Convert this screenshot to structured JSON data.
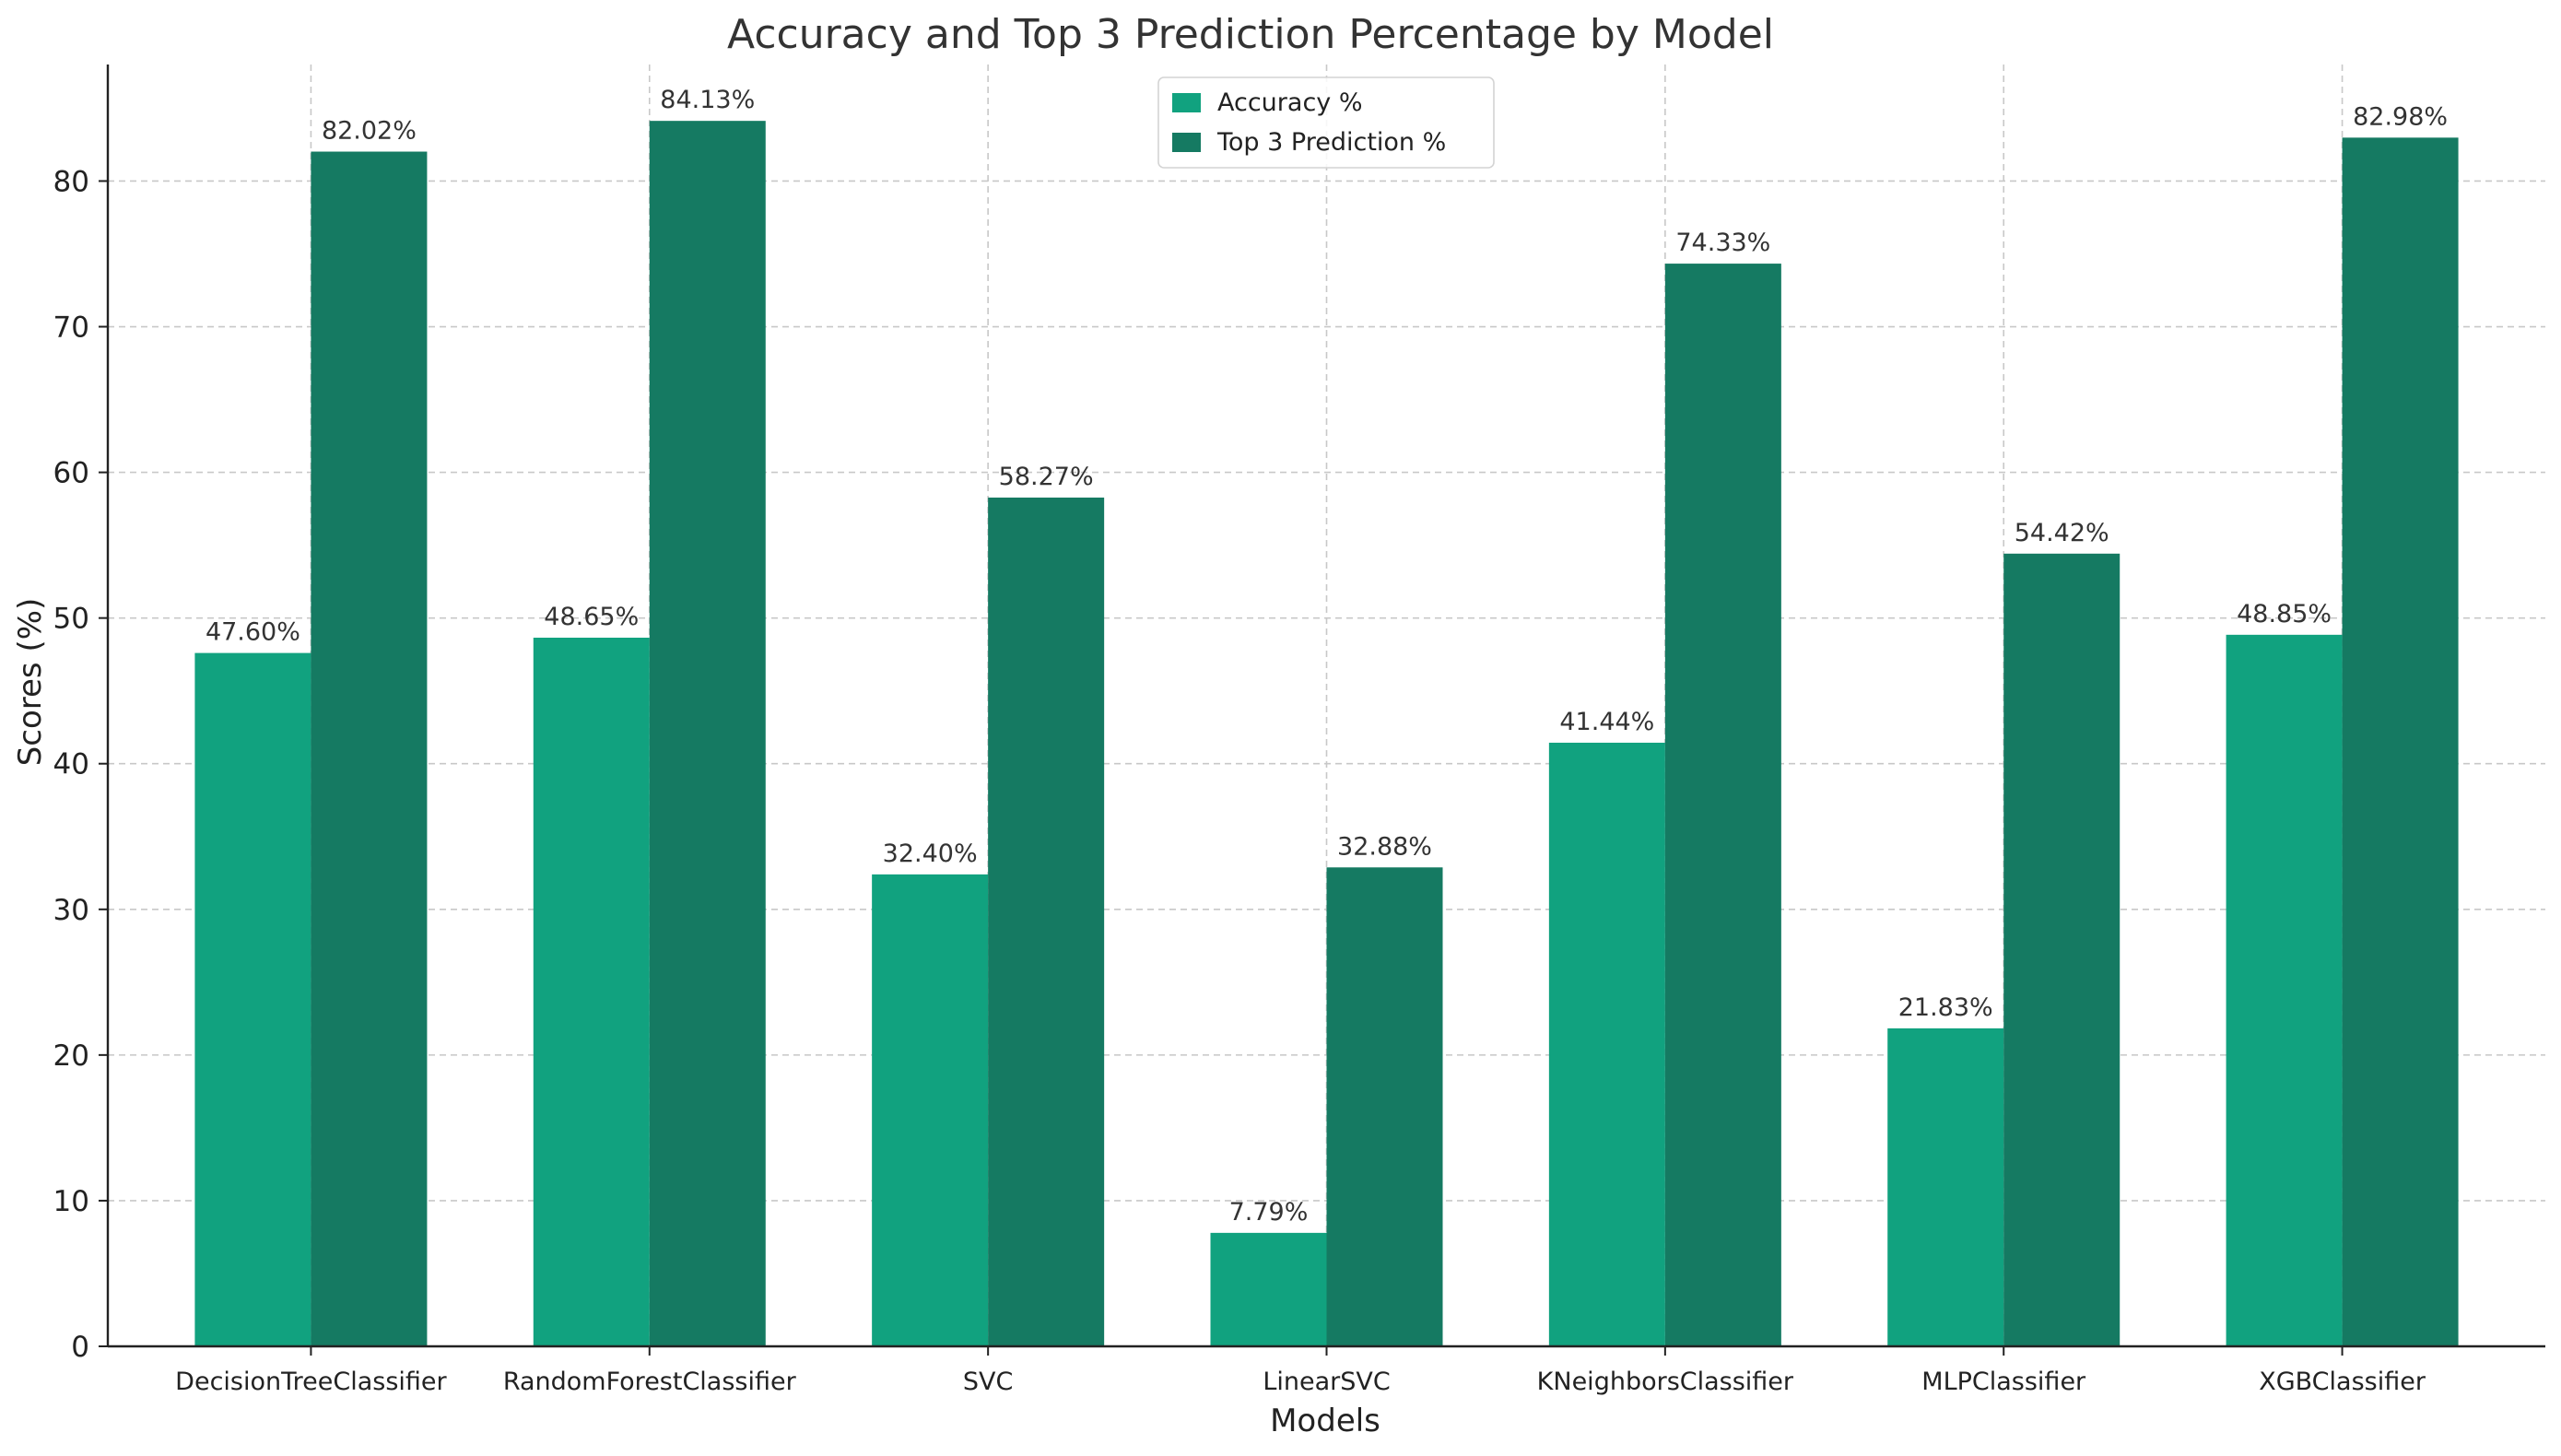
{
  "chart_data": {
    "type": "bar",
    "title": "Accuracy and Top 3 Prediction Percentage by Model",
    "xlabel": "Models",
    "ylabel": "Scores (%)",
    "ylim": [
      0,
      88
    ],
    "yticks": [
      0,
      10,
      20,
      30,
      40,
      50,
      60,
      70,
      80
    ],
    "grid": true,
    "legend_position": "top-center",
    "categories": [
      "DecisionTreeClassifier",
      "RandomForestClassifier",
      "SVC",
      "LinearSVC",
      "KNeighborsClassifier",
      "MLPClassifier",
      "XGBClassifier"
    ],
    "series": [
      {
        "name": "Accuracy %",
        "color": "#11a27f",
        "values": [
          47.6,
          48.65,
          32.4,
          7.79,
          41.44,
          21.83,
          48.85
        ],
        "labels": [
          "47.60%",
          "48.65%",
          "32.40%",
          "7.79%",
          "41.44%",
          "21.83%",
          "48.85%"
        ]
      },
      {
        "name": "Top 3 Prediction %",
        "color": "#157a62",
        "values": [
          82.02,
          84.13,
          58.27,
          32.88,
          74.33,
          54.42,
          82.98
        ],
        "labels": [
          "82.02%",
          "84.13%",
          "58.27%",
          "32.88%",
          "74.33%",
          "54.42%",
          "82.98%"
        ]
      }
    ]
  }
}
